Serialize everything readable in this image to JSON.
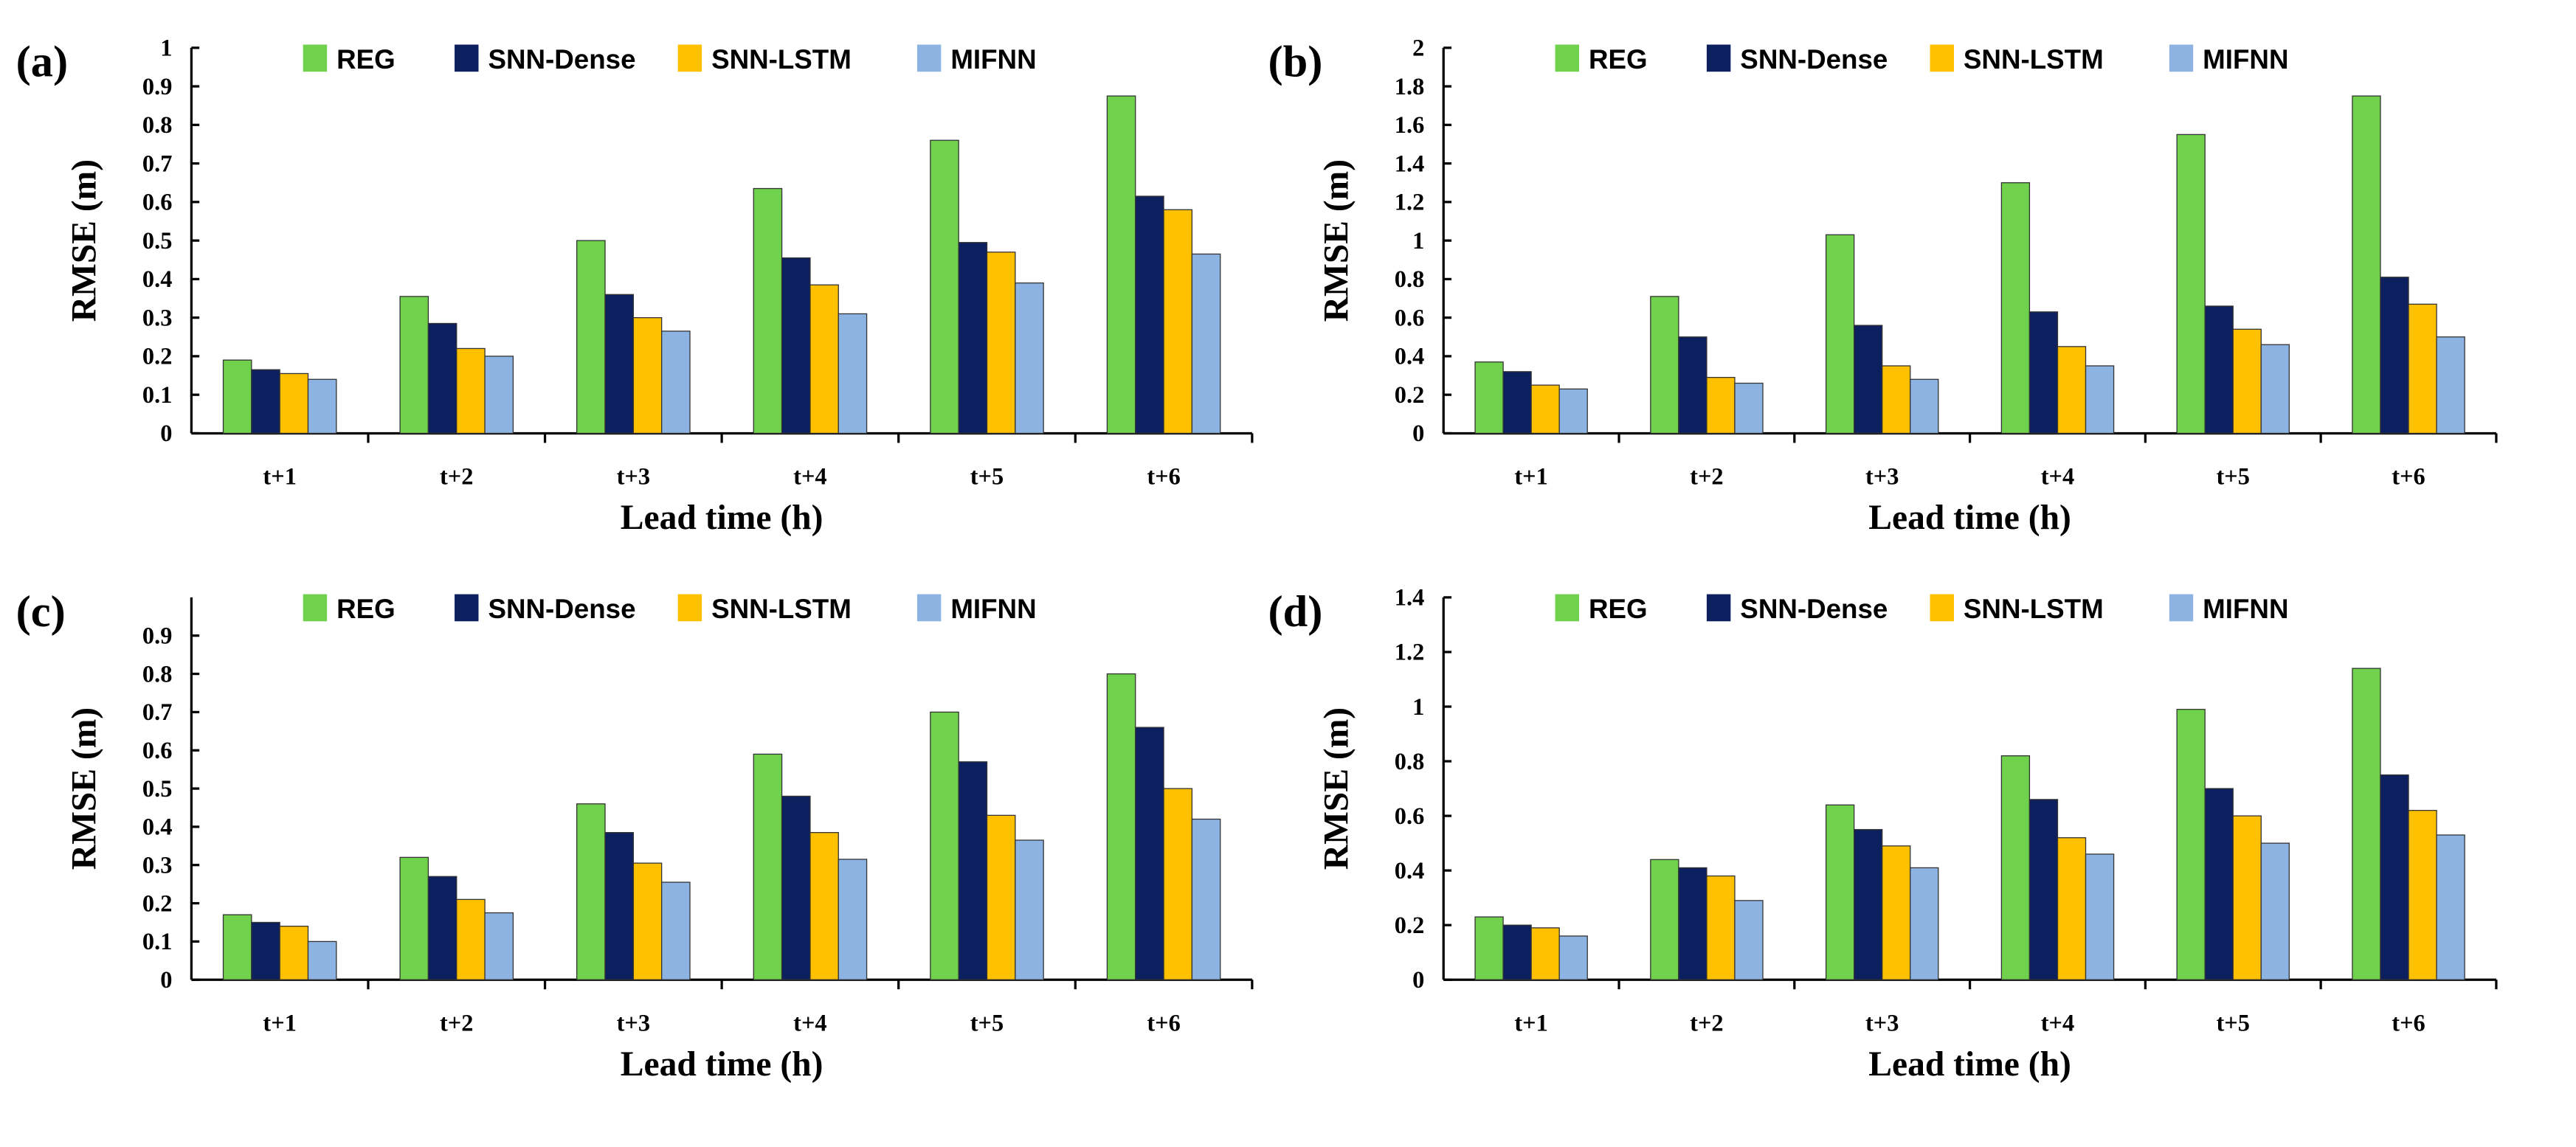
{
  "colors": {
    "REG": "#6fd14c",
    "SNN-Dense": "#0c1f5e",
    "SNN-LSTM": "#ffc000",
    "MIFNN": "#8db3e2"
  },
  "chart_data": [
    {
      "type": "bar",
      "panel": "(a)",
      "categories": [
        "t+1",
        "t+2",
        "t+3",
        "t+4",
        "t+5",
        "t+6"
      ],
      "xlabel": "Lead time (h)",
      "ylabel": "RMSE (m)",
      "ylim": [
        0,
        1
      ],
      "yticks": [
        "0",
        "0.1",
        "0.2",
        "0.3",
        "0.4",
        "0.5",
        "0.6",
        "0.7",
        "0.8",
        "0.9",
        "1"
      ],
      "legend": "top",
      "series": [
        {
          "name": "REG",
          "values": [
            0.19,
            0.355,
            0.5,
            0.635,
            0.76,
            0.875
          ]
        },
        {
          "name": "SNN-Dense",
          "values": [
            0.165,
            0.285,
            0.36,
            0.455,
            0.495,
            0.615
          ]
        },
        {
          "name": "SNN-LSTM",
          "values": [
            0.155,
            0.22,
            0.3,
            0.385,
            0.47,
            0.58
          ]
        },
        {
          "name": "MIFNN",
          "values": [
            0.14,
            0.2,
            0.265,
            0.31,
            0.39,
            0.465
          ]
        }
      ]
    },
    {
      "type": "bar",
      "panel": "(b)",
      "categories": [
        "t+1",
        "t+2",
        "t+3",
        "t+4",
        "t+5",
        "t+6"
      ],
      "xlabel": "Lead time (h)",
      "ylabel": "RMSE (m)",
      "ylim": [
        0,
        2
      ],
      "yticks": [
        "0",
        "0.2",
        "0.4",
        "0.6",
        "0.8",
        "1",
        "1.2",
        "1.4",
        "1.6",
        "1.8",
        "2"
      ],
      "legend": "top",
      "series": [
        {
          "name": "REG",
          "values": [
            0.37,
            0.71,
            1.03,
            1.3,
            1.55,
            1.75
          ]
        },
        {
          "name": "SNN-Dense",
          "values": [
            0.32,
            0.5,
            0.56,
            0.63,
            0.66,
            0.81
          ]
        },
        {
          "name": "SNN-LSTM",
          "values": [
            0.25,
            0.29,
            0.35,
            0.45,
            0.54,
            0.67
          ]
        },
        {
          "name": "MIFNN",
          "values": [
            0.23,
            0.26,
            0.28,
            0.35,
            0.46,
            0.5
          ]
        }
      ]
    },
    {
      "type": "bar",
      "panel": "(c)",
      "categories": [
        "t+1",
        "t+2",
        "t+3",
        "t+4",
        "t+5",
        "t+6"
      ],
      "xlabel": "Lead time (h)",
      "ylabel": "RMSE (m)",
      "ylim": [
        0,
        1
      ],
      "yticks": [
        "0",
        "0.1",
        "0.2",
        "0.3",
        "0.4",
        "0.5",
        "0.6",
        "0.7",
        "0.8",
        "0.9"
      ],
      "legend": "top",
      "series": [
        {
          "name": "REG",
          "values": [
            0.17,
            0.32,
            0.46,
            0.59,
            0.7,
            0.8
          ]
        },
        {
          "name": "SNN-Dense",
          "values": [
            0.15,
            0.27,
            0.385,
            0.48,
            0.57,
            0.66
          ]
        },
        {
          "name": "SNN-LSTM",
          "values": [
            0.14,
            0.21,
            0.305,
            0.385,
            0.43,
            0.5
          ]
        },
        {
          "name": "MIFNN",
          "values": [
            0.1,
            0.175,
            0.255,
            0.315,
            0.365,
            0.42
          ]
        }
      ]
    },
    {
      "type": "bar",
      "panel": "(d)",
      "categories": [
        "t+1",
        "t+2",
        "t+3",
        "t+4",
        "t+5",
        "t+6"
      ],
      "xlabel": "Lead time (h)",
      "ylabel": "RMSE (m)",
      "ylim": [
        0,
        1.4
      ],
      "yticks": [
        "0",
        "0.2",
        "0.4",
        "0.6",
        "0.8",
        "1",
        "1.2",
        "1.4"
      ],
      "legend": "top",
      "series": [
        {
          "name": "REG",
          "values": [
            0.23,
            0.44,
            0.64,
            0.82,
            0.99,
            1.14
          ]
        },
        {
          "name": "SNN-Dense",
          "values": [
            0.2,
            0.41,
            0.55,
            0.66,
            0.7,
            0.75
          ]
        },
        {
          "name": "SNN-LSTM",
          "values": [
            0.19,
            0.38,
            0.49,
            0.52,
            0.6,
            0.62
          ]
        },
        {
          "name": "MIFNN",
          "values": [
            0.16,
            0.29,
            0.41,
            0.46,
            0.5,
            0.53
          ]
        }
      ]
    }
  ]
}
